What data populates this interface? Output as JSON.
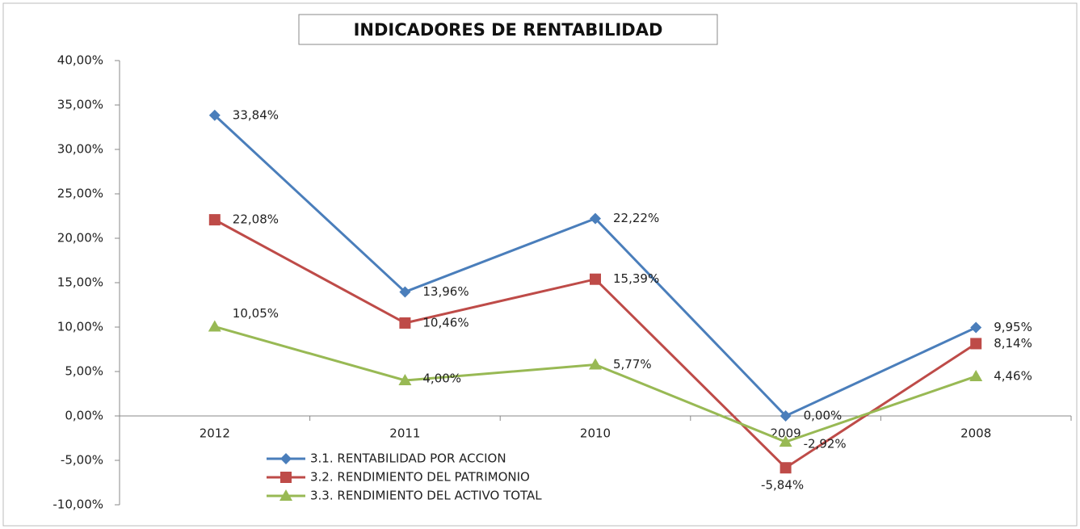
{
  "chart_data": {
    "type": "line",
    "title": "INDICADORES DE RENTABILIDAD",
    "categories": [
      "2012",
      "2011",
      "2010",
      "2009",
      "2008"
    ],
    "series": [
      {
        "name": "3.1. RENTABILIDAD POR ACCION",
        "color": "#4a7ebb",
        "marker": "diamond",
        "values": [
          33.84,
          13.96,
          22.22,
          0.0,
          9.95
        ],
        "value_labels": [
          "33,84%",
          "13,96%",
          "22,22%",
          "0,00%",
          "9,95%"
        ]
      },
      {
        "name": "3.2. RENDIMIENTO DEL PATRIMONIO",
        "color": "#be4b48",
        "marker": "square",
        "values": [
          22.08,
          10.46,
          15.39,
          -5.84,
          8.14
        ],
        "value_labels": [
          "22,08%",
          "10,46%",
          "15,39%",
          "-5,84%",
          "8,14%"
        ]
      },
      {
        "name": "3.3. RENDIMIENTO DEL ACTIVO TOTAL",
        "color": "#98b954",
        "marker": "triangle",
        "values": [
          10.05,
          4.0,
          5.77,
          -2.92,
          4.46
        ],
        "value_labels": [
          "10,05%",
          "4,00%",
          "5,77%",
          "-2,92%",
          "4,46%"
        ]
      }
    ],
    "ylim": [
      -10,
      40
    ],
    "yticks": [
      {
        "value": -10,
        "label": "-10,00%"
      },
      {
        "value": -5,
        "label": "-5,00%"
      },
      {
        "value": 0,
        "label": "0,00%"
      },
      {
        "value": 5,
        "label": "5,00%"
      },
      {
        "value": 10,
        "label": "10,00%"
      },
      {
        "value": 15,
        "label": "15,00%"
      },
      {
        "value": 20,
        "label": "20,00%"
      },
      {
        "value": 25,
        "label": "25,00%"
      },
      {
        "value": 30,
        "label": "30,00%"
      },
      {
        "value": 35,
        "label": "35,00%"
      },
      {
        "value": 40,
        "label": "40,00%"
      }
    ],
    "grid": false,
    "legend": "bottom-left"
  }
}
